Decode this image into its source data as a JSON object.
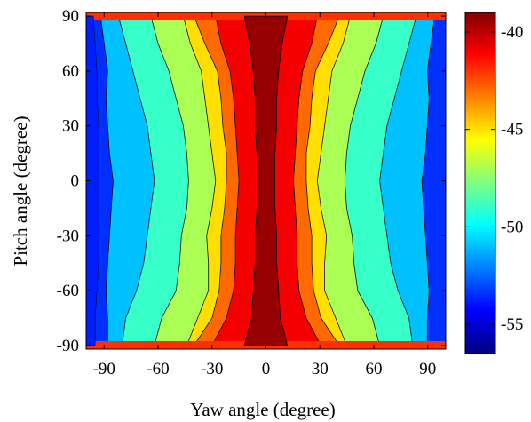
{
  "chart_data": {
    "type": "heatmap",
    "subtype": "filled-contour",
    "xlabel": "Yaw angle (degree)",
    "ylabel": "Pitch angle (degree)",
    "xlim": [
      -100,
      100
    ],
    "ylim": [
      -92,
      92
    ],
    "xticks": [
      -90,
      -60,
      -30,
      0,
      30,
      60,
      90
    ],
    "yticks": [
      -90,
      -60,
      -30,
      0,
      30,
      60,
      90
    ],
    "xtick_labels": [
      "-90",
      "-60",
      "-30",
      "0",
      "30",
      "60",
      "90"
    ],
    "ytick_labels": [
      "-90",
      "-60",
      "-30",
      "0",
      "30",
      "60",
      "90"
    ],
    "colorbar": {
      "range": [
        -56.5,
        -39
      ],
      "ticks": [
        -40,
        -45,
        -50,
        -55
      ],
      "tick_labels": [
        "-40",
        "-45",
        "-50",
        "-55"
      ],
      "colormap": "jet"
    },
    "contour_levels": [
      -54,
      -52,
      -50,
      -48,
      -46,
      -44,
      -42
    ],
    "pitch_profile": {
      "y": [
        -90,
        -75,
        -60,
        -45,
        -30,
        -15,
        0,
        15,
        30,
        45,
        60,
        75,
        90
      ],
      "boundaries": [
        {
          "level": -52,
          "x": [
            -88,
            -88,
            -89,
            -88,
            -87,
            -86,
            -85,
            -87,
            -88,
            -89,
            -88,
            -90,
            -92
          ]
        },
        {
          "level": -50,
          "x": [
            -80,
            -78,
            -72,
            -68,
            -66,
            -64,
            -62,
            -64,
            -66,
            -70,
            -74,
            -78,
            -82
          ]
        },
        {
          "level": -48,
          "x": [
            -62,
            -58,
            -50,
            -48,
            -47,
            -44,
            -43,
            -44,
            -46,
            -50,
            -54,
            -60,
            -64
          ]
        },
        {
          "level": -46,
          "x": [
            -44,
            -38,
            -32,
            -32,
            -33,
            -30,
            -28,
            -30,
            -32,
            -34,
            -36,
            -42,
            -46
          ]
        },
        {
          "level": -44,
          "x": [
            -40,
            -30,
            -26,
            -25,
            -25,
            -23,
            -22,
            -22,
            -24,
            -25,
            -27,
            -34,
            -40
          ]
        },
        {
          "level": -42,
          "x": [
            -30,
            -22,
            -18,
            -17,
            -17,
            -16,
            -15,
            -16,
            -17,
            -18,
            -20,
            -25,
            -28
          ]
        },
        {
          "level": -40,
          "x": [
            -12,
            -8,
            -7,
            -6,
            -6,
            -5,
            -5,
            -5,
            -6,
            -6,
            -7,
            -9,
            -12
          ]
        }
      ]
    }
  }
}
